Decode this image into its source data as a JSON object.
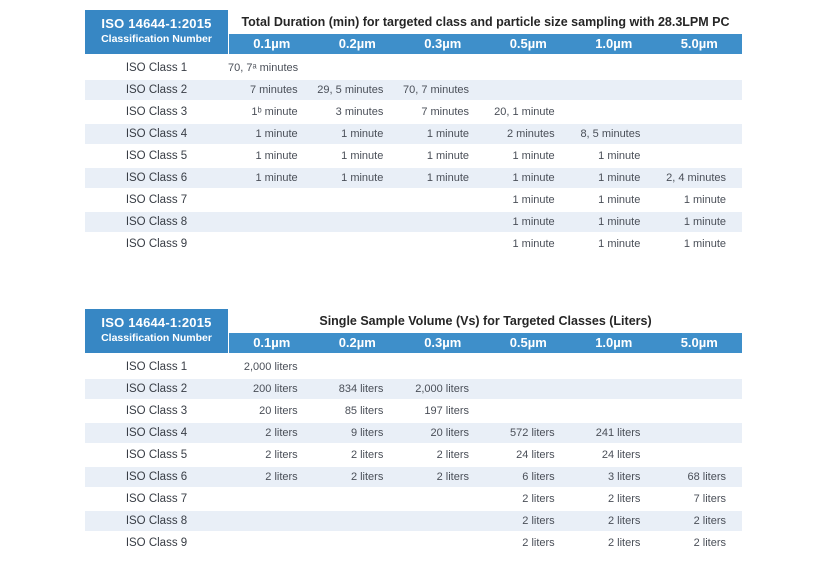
{
  "colors": {
    "header_blue": "#3e8fca",
    "corner_blue": "#3787c4",
    "stripe_blue": "#e9eff7",
    "text_dark": "#262626",
    "text_value": "#4a4f58"
  },
  "tables": [
    {
      "id": "duration",
      "corner_title": "ISO 14644-1:2015",
      "corner_subtitle": "Classification Number",
      "title": "Total Duration (min) for targeted class and particle size sampling with 28.3LPM PC",
      "columns": [
        "0.1µm",
        "0.2µm",
        "0.3µm",
        "0.5µm",
        "1.0µm",
        "5.0µm"
      ],
      "rows": [
        {
          "label": "ISO Class 1",
          "values": [
            "70, 7ᵃ minutes",
            "",
            "",
            "",
            "",
            ""
          ]
        },
        {
          "label": "ISO Class 2",
          "values": [
            "7 minutes",
            "29, 5 minutes",
            "70, 7 minutes",
            "",
            "",
            ""
          ]
        },
        {
          "label": "ISO Class 3",
          "values": [
            "1ᵇ minute",
            "3 minutes",
            "7 minutes",
            "20, 1 minute",
            "",
            ""
          ]
        },
        {
          "label": "ISO Class 4",
          "values": [
            "1 minute",
            "1 minute",
            "1 minute",
            "2 minutes",
            "8, 5 minutes",
            ""
          ]
        },
        {
          "label": "ISO Class 5",
          "values": [
            "1 minute",
            "1 minute",
            "1 minute",
            "1 minute",
            "1 minute",
            ""
          ]
        },
        {
          "label": "ISO Class 6",
          "values": [
            "1 minute",
            "1 minute",
            "1 minute",
            "1 minute",
            "1 minute",
            "2, 4 minutes"
          ]
        },
        {
          "label": "ISO Class 7",
          "values": [
            "",
            "",
            "",
            "1 minute",
            "1 minute",
            "1 minute"
          ]
        },
        {
          "label": "ISO Class 8",
          "values": [
            "",
            "",
            "",
            "1 minute",
            "1 minute",
            "1 minute"
          ]
        },
        {
          "label": "ISO Class 9",
          "values": [
            "",
            "",
            "",
            "1 minute",
            "1 minute",
            "1 minute"
          ]
        }
      ]
    },
    {
      "id": "volume",
      "corner_title": "ISO 14644-1:2015",
      "corner_subtitle": "Classification Number",
      "title": "Single Sample Volume (Vs) for Targeted Classes (Liters)",
      "columns": [
        "0.1µm",
        "0.2µm",
        "0.3µm",
        "0.5µm",
        "1.0µm",
        "5.0µm"
      ],
      "rows": [
        {
          "label": "ISO Class 1",
          "values": [
            "2,000 liters",
            "",
            "",
            "",
            "",
            ""
          ]
        },
        {
          "label": "ISO Class 2",
          "values": [
            "200 liters",
            "834 liters",
            "2,000 liters",
            "",
            "",
            ""
          ]
        },
        {
          "label": "ISO Class 3",
          "values": [
            "20 liters",
            "85 liters",
            "197 liters",
            "",
            "",
            ""
          ]
        },
        {
          "label": "ISO Class 4",
          "values": [
            "2 liters",
            "9 liters",
            "20 liters",
            "572 liters",
            "241 liters",
            ""
          ]
        },
        {
          "label": "ISO Class 5",
          "values": [
            "2 liters",
            "2 liters",
            "2 liters",
            "24 liters",
            "24 liters",
            ""
          ]
        },
        {
          "label": "ISO Class 6",
          "values": [
            "2 liters",
            "2 liters",
            "2 liters",
            "6 liters",
            "3 liters",
            "68 liters"
          ]
        },
        {
          "label": "ISO Class 7",
          "values": [
            "",
            "",
            "",
            "2 liters",
            "2 liters",
            "7 liters"
          ]
        },
        {
          "label": "ISO Class 8",
          "values": [
            "",
            "",
            "",
            "2 liters",
            "2 liters",
            "2 liters"
          ]
        },
        {
          "label": "ISO Class 9",
          "values": [
            "",
            "",
            "",
            "2 liters",
            "2 liters",
            "2 liters"
          ]
        }
      ]
    }
  ]
}
